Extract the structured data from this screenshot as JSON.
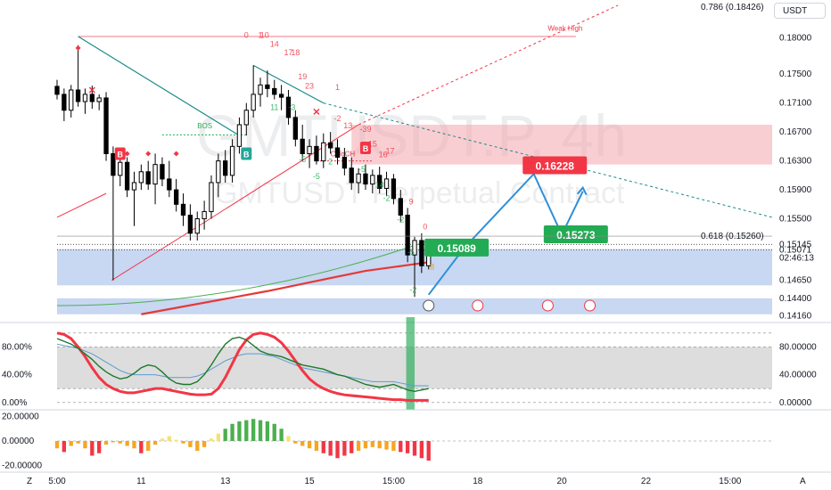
{
  "header": {
    "currency": "USDT",
    "watermark_symbol": "GMTUSDT.P, 4h",
    "watermark_name": "GMTUSDT Perpetual Contract"
  },
  "corners": {
    "left": "Z",
    "right": "A"
  },
  "chart_data": {
    "type": "candlestick",
    "price_axis": {
      "range": [
        0.1414,
        0.1845
      ],
      "ticks": [
        "0.18000",
        "0.17500",
        "0.17100",
        "0.16700",
        "0.16300",
        "0.15900",
        "0.15500",
        "0.14650",
        "0.14400",
        "0.14160"
      ],
      "tick_values": [
        0.18,
        0.175,
        0.171,
        0.167,
        0.163,
        0.159,
        0.155,
        0.1465,
        0.144,
        0.1416
      ]
    },
    "time_axis": {
      "labels": [
        "5:00",
        "11",
        "13",
        "15",
        "15:00",
        "18",
        "20",
        "22",
        "15:00"
      ],
      "positions": [
        0,
        12,
        24,
        36,
        48,
        60,
        72,
        84,
        96
      ],
      "range": [
        0,
        102
      ]
    },
    "price_labels": [
      {
        "text": "0.15145",
        "price": 0.15145,
        "color": "#131722"
      },
      {
        "text": "0.15071",
        "price": 0.15071,
        "color": "#131722"
      },
      {
        "text": "02:46:13",
        "price": 0.1496,
        "color": "#131722"
      }
    ],
    "fib_labels": [
      {
        "text": "0.786 (0.18426)",
        "price": 0.18426,
        "color": "#5b9bd5"
      },
      {
        "text": "0.618 (0.15260)",
        "price": 0.1526,
        "color": "#555555"
      }
    ],
    "candles": [
      {
        "i": 0,
        "o": 0.1733,
        "h": 0.1742,
        "l": 0.1715,
        "c": 0.1722
      },
      {
        "i": 1,
        "o": 0.1722,
        "h": 0.173,
        "l": 0.1685,
        "c": 0.17
      },
      {
        "i": 2,
        "o": 0.17,
        "h": 0.1735,
        "l": 0.169,
        "c": 0.1728
      },
      {
        "i": 3,
        "o": 0.1728,
        "h": 0.179,
        "l": 0.1705,
        "c": 0.1712
      },
      {
        "i": 4,
        "o": 0.1712,
        "h": 0.173,
        "l": 0.1695,
        "c": 0.1722
      },
      {
        "i": 5,
        "o": 0.1722,
        "h": 0.1734,
        "l": 0.1702,
        "c": 0.1712
      },
      {
        "i": 6,
        "o": 0.1712,
        "h": 0.1722,
        "l": 0.17,
        "c": 0.1717
      },
      {
        "i": 7,
        "o": 0.1717,
        "h": 0.1725,
        "l": 0.163,
        "c": 0.164
      },
      {
        "i": 8,
        "o": 0.164,
        "h": 0.165,
        "l": 0.1465,
        "c": 0.161
      },
      {
        "i": 9,
        "o": 0.161,
        "h": 0.164,
        "l": 0.1595,
        "c": 0.1628
      },
      {
        "i": 10,
        "o": 0.1628,
        "h": 0.1635,
        "l": 0.158,
        "c": 0.159
      },
      {
        "i": 11,
        "o": 0.159,
        "h": 0.1615,
        "l": 0.154,
        "c": 0.16
      },
      {
        "i": 12,
        "o": 0.16,
        "h": 0.1625,
        "l": 0.159,
        "c": 0.1615
      },
      {
        "i": 13,
        "o": 0.1615,
        "h": 0.163,
        "l": 0.159,
        "c": 0.1598
      },
      {
        "i": 14,
        "o": 0.1598,
        "h": 0.164,
        "l": 0.157,
        "c": 0.1625
      },
      {
        "i": 15,
        "o": 0.1625,
        "h": 0.1635,
        "l": 0.1595,
        "c": 0.1605
      },
      {
        "i": 16,
        "o": 0.1605,
        "h": 0.163,
        "l": 0.158,
        "c": 0.159
      },
      {
        "i": 17,
        "o": 0.159,
        "h": 0.1605,
        "l": 0.156,
        "c": 0.157
      },
      {
        "i": 18,
        "o": 0.157,
        "h": 0.1585,
        "l": 0.154,
        "c": 0.1555
      },
      {
        "i": 19,
        "o": 0.1555,
        "h": 0.157,
        "l": 0.152,
        "c": 0.153
      },
      {
        "i": 20,
        "o": 0.153,
        "h": 0.156,
        "l": 0.152,
        "c": 0.155
      },
      {
        "i": 21,
        "o": 0.155,
        "h": 0.1575,
        "l": 0.1535,
        "c": 0.156
      },
      {
        "i": 22,
        "o": 0.156,
        "h": 0.161,
        "l": 0.155,
        "c": 0.16
      },
      {
        "i": 23,
        "o": 0.16,
        "h": 0.164,
        "l": 0.158,
        "c": 0.163
      },
      {
        "i": 24,
        "o": 0.163,
        "h": 0.1645,
        "l": 0.16,
        "c": 0.161
      },
      {
        "i": 25,
        "o": 0.161,
        "h": 0.166,
        "l": 0.16,
        "c": 0.165
      },
      {
        "i": 26,
        "o": 0.165,
        "h": 0.169,
        "l": 0.164,
        "c": 0.168
      },
      {
        "i": 27,
        "o": 0.168,
        "h": 0.171,
        "l": 0.1665,
        "c": 0.17
      },
      {
        "i": 28,
        "o": 0.17,
        "h": 0.1762,
        "l": 0.169,
        "c": 0.1722
      },
      {
        "i": 29,
        "o": 0.1722,
        "h": 0.1745,
        "l": 0.1705,
        "c": 0.1735
      },
      {
        "i": 30,
        "o": 0.1735,
        "h": 0.1755,
        "l": 0.1718,
        "c": 0.173
      },
      {
        "i": 31,
        "o": 0.173,
        "h": 0.1742,
        "l": 0.1715,
        "c": 0.1722
      },
      {
        "i": 32,
        "o": 0.1722,
        "h": 0.1735,
        "l": 0.17,
        "c": 0.1718
      },
      {
        "i": 33,
        "o": 0.1718,
        "h": 0.1728,
        "l": 0.168,
        "c": 0.169
      },
      {
        "i": 34,
        "o": 0.169,
        "h": 0.17,
        "l": 0.165,
        "c": 0.166
      },
      {
        "i": 35,
        "o": 0.166,
        "h": 0.168,
        "l": 0.163,
        "c": 0.164
      },
      {
        "i": 36,
        "o": 0.164,
        "h": 0.166,
        "l": 0.162,
        "c": 0.165
      },
      {
        "i": 37,
        "o": 0.165,
        "h": 0.1665,
        "l": 0.1625,
        "c": 0.163
      },
      {
        "i": 38,
        "o": 0.163,
        "h": 0.1668,
        "l": 0.162,
        "c": 0.1655
      },
      {
        "i": 39,
        "o": 0.1655,
        "h": 0.167,
        "l": 0.164,
        "c": 0.1648
      },
      {
        "i": 40,
        "o": 0.1648,
        "h": 0.166,
        "l": 0.1625,
        "c": 0.1635
      },
      {
        "i": 41,
        "o": 0.1635,
        "h": 0.1648,
        "l": 0.161,
        "c": 0.162
      },
      {
        "i": 42,
        "o": 0.162,
        "h": 0.1635,
        "l": 0.159,
        "c": 0.16
      },
      {
        "i": 43,
        "o": 0.16,
        "h": 0.162,
        "l": 0.1585,
        "c": 0.1612
      },
      {
        "i": 44,
        "o": 0.1612,
        "h": 0.1625,
        "l": 0.159,
        "c": 0.1598
      },
      {
        "i": 45,
        "o": 0.1598,
        "h": 0.1618,
        "l": 0.1585,
        "c": 0.161
      },
      {
        "i": 46,
        "o": 0.161,
        "h": 0.1622,
        "l": 0.1585,
        "c": 0.1592
      },
      {
        "i": 47,
        "o": 0.1592,
        "h": 0.1615,
        "l": 0.1582,
        "c": 0.1605
      },
      {
        "i": 48,
        "o": 0.1605,
        "h": 0.1612,
        "l": 0.157,
        "c": 0.1578
      },
      {
        "i": 49,
        "o": 0.1578,
        "h": 0.159,
        "l": 0.1545,
        "c": 0.1555
      },
      {
        "i": 50,
        "o": 0.1555,
        "h": 0.1565,
        "l": 0.149,
        "c": 0.15
      },
      {
        "i": 51,
        "o": 0.15,
        "h": 0.1525,
        "l": 0.1442,
        "c": 0.152
      },
      {
        "i": 52,
        "o": 0.152,
        "h": 0.153,
        "l": 0.1475,
        "c": 0.1485
      },
      {
        "i": 53,
        "o": 0.1485,
        "h": 0.1515,
        "l": 0.148,
        "c": 0.1507
      }
    ],
    "zones": [
      {
        "name": "supply",
        "from": 0.1625,
        "to": 0.168,
        "x_from": 42,
        "color": "#f4a6ad"
      },
      {
        "name": "demand",
        "from": 0.1458,
        "to": 0.1508,
        "x_from": 0,
        "color": "#9bb7e8"
      },
      {
        "name": "demand-low",
        "from": 0.1418,
        "to": 0.144,
        "x_from": 0,
        "color": "#9bb7e8"
      }
    ],
    "forecast_path": [
      {
        "x": 53,
        "price": 0.1445
      },
      {
        "x": 58,
        "price": 0.15089
      },
      {
        "x": 68,
        "price": 0.1612
      },
      {
        "x": 72,
        "price": 0.1528
      },
      {
        "x": 75,
        "price": 0.1588
      }
    ],
    "targets": [
      {
        "text": "0.16228",
        "price": 0.16228,
        "x": 71,
        "color": "#f23645"
      },
      {
        "text": "0.15089",
        "price": 0.15089,
        "x": 57,
        "color": "#22ab54"
      },
      {
        "text": "0.15273",
        "price": 0.15273,
        "x": 74,
        "color": "#22ab54"
      }
    ],
    "annotations": {
      "weak_high": "Weak High",
      "bos": "BOS",
      "choch": "CHoCH",
      "sell_label": "B",
      "buy_label": "B"
    },
    "td_counts": [
      {
        "text": "0",
        "x": 27,
        "price": 0.18,
        "color": "#f23645"
      },
      {
        "text": "1",
        "x": 29,
        "price": 0.18,
        "color": "#f23645"
      },
      {
        "text": "10",
        "x": 29.6,
        "price": 0.18,
        "color": "#f23645"
      },
      {
        "text": "14",
        "x": 31,
        "price": 0.1788,
        "color": "#f23645"
      },
      {
        "text": "17",
        "x": 33,
        "price": 0.1776,
        "color": "#f23645"
      },
      {
        "text": "18",
        "x": 34,
        "price": 0.1776,
        "color": "#f23645"
      },
      {
        "text": "19",
        "x": 35,
        "price": 0.1743,
        "color": "#f23645"
      },
      {
        "text": "23",
        "x": 36,
        "price": 0.173,
        "color": "#f23645"
      },
      {
        "text": "1",
        "x": 40,
        "price": 0.1728,
        "color": "#f23645"
      },
      {
        "text": "-2",
        "x": 40,
        "price": 0.1685,
        "color": "#f23645"
      },
      {
        "text": "13",
        "x": 41.5,
        "price": 0.1675,
        "color": "#f23645"
      },
      {
        "text": "-39",
        "x": 44,
        "price": 0.167,
        "color": "#f23645"
      },
      {
        "text": "15",
        "x": 45,
        "price": 0.165,
        "color": "#f23645"
      },
      {
        "text": "16",
        "x": 46.5,
        "price": 0.1635,
        "color": "#f23645"
      },
      {
        "text": "17",
        "x": 47.5,
        "price": 0.164,
        "color": "#f23645"
      },
      {
        "text": "9",
        "x": 50.5,
        "price": 0.157,
        "color": "#f23645"
      },
      {
        "text": "0",
        "x": 52.5,
        "price": 0.1535,
        "color": "#f23645"
      },
      {
        "text": "11",
        "x": 31,
        "price": 0.17,
        "color": "#22ab54"
      },
      {
        "text": "-3",
        "x": 33.5,
        "price": 0.17,
        "color": "#22ab54"
      },
      {
        "text": "-5",
        "x": 35,
        "price": 0.1628,
        "color": "#22ab54"
      },
      {
        "text": "-5",
        "x": 37,
        "price": 0.1605,
        "color": "#22ab54"
      },
      {
        "text": "2",
        "x": 39,
        "price": 0.1625,
        "color": "#22ab54"
      },
      {
        "text": "-5",
        "x": 43.5,
        "price": 0.1615,
        "color": "#22ab54"
      },
      {
        "text": "14",
        "x": 46,
        "price": 0.1593,
        "color": "#22ab54"
      },
      {
        "text": "-2",
        "x": 47,
        "price": 0.1575,
        "color": "#22ab54"
      },
      {
        "text": "-2",
        "x": 49,
        "price": 0.1545,
        "color": "#22ab54"
      },
      {
        "text": "-5",
        "x": 50.5,
        "price": 0.15,
        "color": "#22ab54"
      },
      {
        "text": "-2",
        "x": 50.8,
        "price": 0.1448,
        "color": "#22ab54"
      },
      {
        "text": "8",
        "x": 53.5,
        "price": 0.148,
        "color": "#d4a017"
      }
    ],
    "oscillator": {
      "axis": [
        "80.00%",
        "40.00%",
        "0.00%"
      ],
      "axis_values": [
        80,
        40,
        0
      ],
      "right_axis": [
        "80.00000",
        "40.00000",
        "0.00000"
      ],
      "range": [
        -8,
        110
      ],
      "upper_band": 80,
      "lower_band": 20,
      "red_line": [
        100,
        98,
        92,
        80,
        66,
        50,
        36,
        26,
        20,
        16,
        14,
        14,
        16,
        18,
        20,
        20,
        18,
        16,
        14,
        12,
        11,
        11,
        12,
        20,
        36,
        56,
        76,
        90,
        98,
        100,
        98,
        94,
        86,
        74,
        60,
        46,
        34,
        26,
        20,
        16,
        13,
        11,
        10,
        9,
        8,
        7,
        6,
        5,
        4,
        4,
        3,
        3,
        3,
        3
      ],
      "green_line": [
        92,
        88,
        84,
        78,
        70,
        62,
        52,
        44,
        38,
        34,
        36,
        42,
        50,
        54,
        52,
        44,
        34,
        28,
        26,
        26,
        30,
        40,
        54,
        70,
        84,
        92,
        94,
        90,
        82,
        74,
        70,
        68,
        66,
        62,
        58,
        54,
        52,
        50,
        48,
        44,
        40,
        38,
        34,
        30,
        26,
        24,
        22,
        24,
        26,
        22,
        18,
        16,
        18,
        20
      ],
      "blue_line": [
        84,
        82,
        80,
        78,
        74,
        70,
        64,
        58,
        52,
        46,
        42,
        40,
        40,
        40,
        40,
        38,
        36,
        36,
        36,
        36,
        38,
        42,
        48,
        54,
        60,
        64,
        68,
        70,
        70,
        70,
        68,
        66,
        62,
        58,
        54,
        50,
        48,
        46,
        44,
        42,
        40,
        38,
        36,
        34,
        32,
        30,
        30,
        30,
        30,
        28,
        26,
        24,
        24,
        24
      ]
    },
    "histogram": {
      "axis": [
        "20.00000",
        "0.00000",
        "-20.00000"
      ],
      "axis_values": [
        20,
        0,
        -20
      ],
      "range": [
        -24,
        24
      ],
      "values": [
        -6,
        -9,
        -4,
        -2,
        -6,
        -12,
        -10,
        -3,
        -1,
        -2,
        -4,
        -6,
        -10,
        -8,
        -3,
        2,
        4,
        1,
        -2,
        -5,
        -8,
        -5,
        2,
        6,
        10,
        14,
        16,
        17,
        18,
        17,
        16,
        14,
        10,
        4,
        -2,
        -4,
        -6,
        -8,
        -10,
        -12,
        -14,
        -12,
        -10,
        -8,
        -6,
        -5,
        -6,
        -7,
        -8,
        -9,
        -10,
        -12,
        -14,
        -16
      ]
    },
    "grid": true
  }
}
